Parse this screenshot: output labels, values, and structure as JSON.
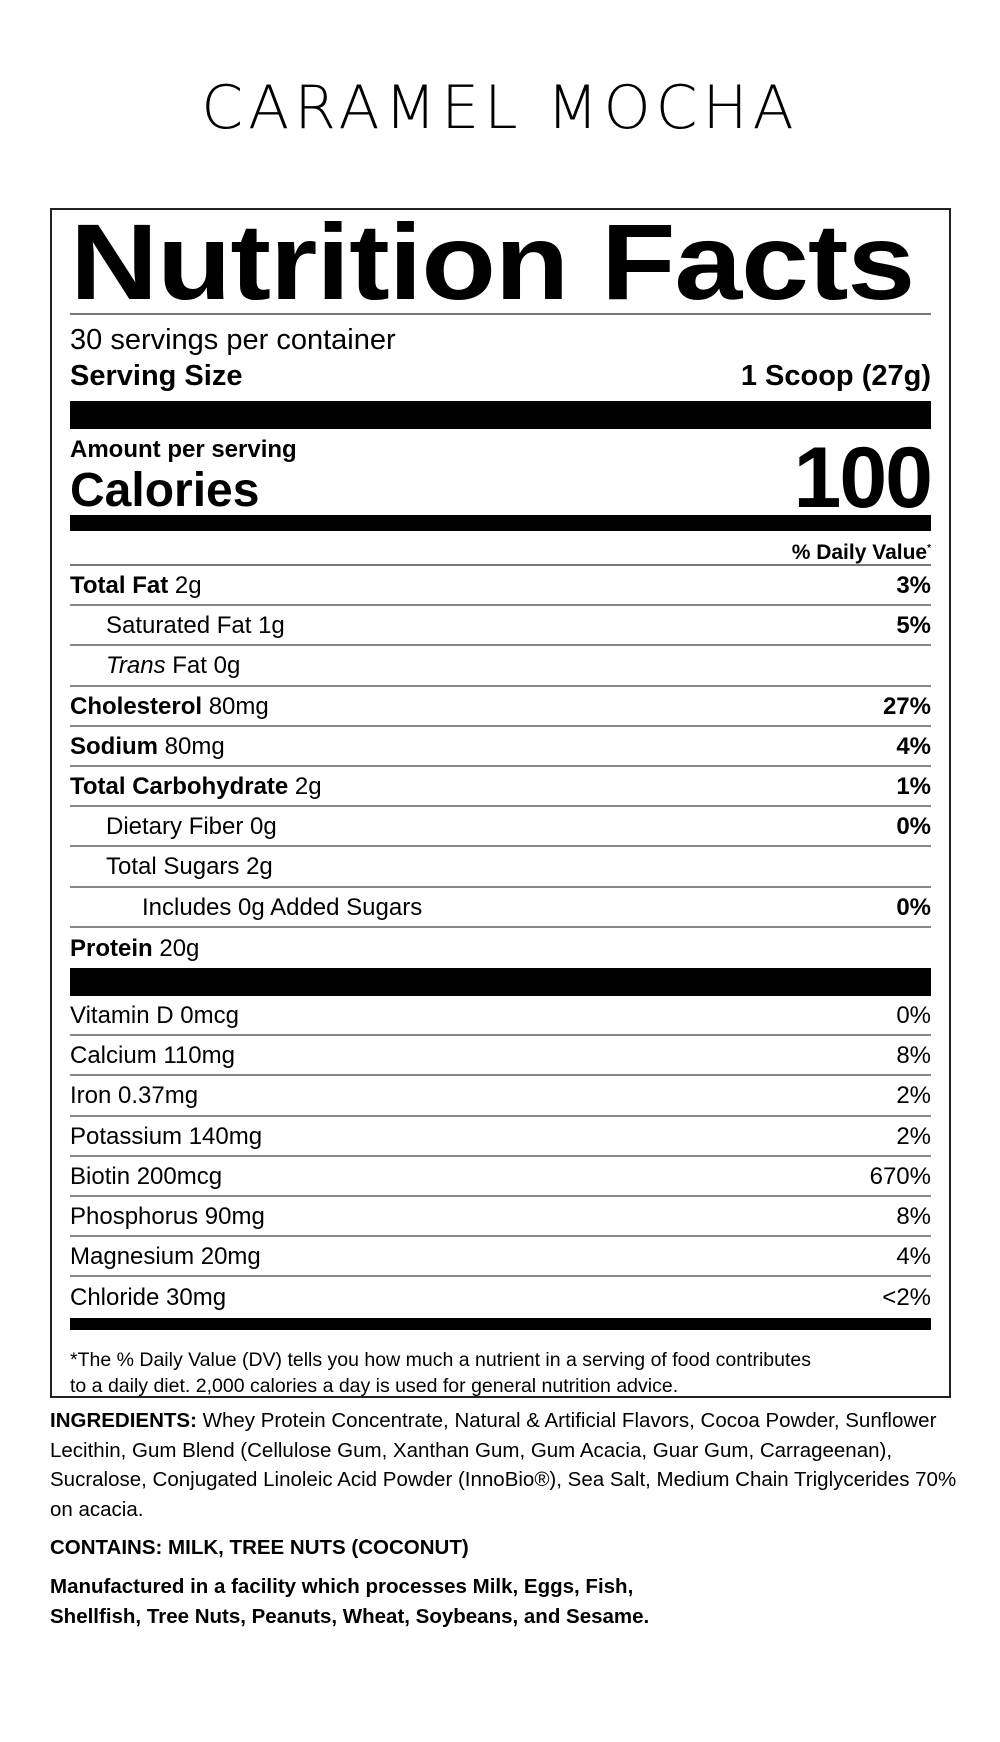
{
  "product_title": "CARAMEL MOCHA",
  "label": {
    "title": "Nutrition Facts",
    "servings_per_container": "30 servings per container",
    "serving_size_label": "Serving Size",
    "serving_size_value": "1 Scoop (27g)",
    "amount_per_serving": "Amount per serving",
    "calories_label": "Calories",
    "calories_value": "100",
    "daily_value_header": "% Daily Value",
    "daily_value_asterisk": "*",
    "nutrients": [
      {
        "bold": "Total Fat",
        "text": " 2g",
        "dv": "3%",
        "indent": 0
      },
      {
        "text": "Saturated Fat 1g",
        "dv": "5%",
        "indent": 1
      },
      {
        "italic": "Trans",
        "text": " Fat 0g",
        "dv": "",
        "indent": 1
      },
      {
        "bold": "Cholesterol",
        "text": " 80mg",
        "dv": "27%",
        "indent": 0
      },
      {
        "bold": "Sodium",
        "text": " 80mg",
        "dv": "4%",
        "indent": 0
      },
      {
        "bold": "Total Carbohydrate",
        "text": " 2g",
        "dv": "1%",
        "indent": 0
      },
      {
        "text": "Dietary Fiber 0g",
        "dv": "0%",
        "indent": 1
      },
      {
        "text": "Total Sugars 2g",
        "dv": "",
        "indent": 1
      },
      {
        "text": "Includes 0g Added Sugars",
        "dv": "0%",
        "indent": 2
      },
      {
        "bold": "Protein",
        "text": " 20g",
        "dv": "",
        "indent": 0
      }
    ],
    "vitamins": [
      {
        "text": "Vitamin D 0mcg",
        "dv": "0%"
      },
      {
        "text": "Calcium 110mg",
        "dv": "8%"
      },
      {
        "text": "Iron 0.37mg",
        "dv": "2%"
      },
      {
        "text": "Potassium 140mg",
        "dv": "2%"
      },
      {
        "text": "Biotin 200mcg",
        "dv": "670%"
      },
      {
        "text": "Phosphorus 90mg",
        "dv": "8%"
      },
      {
        "text": "Magnesium 20mg",
        "dv": "4%"
      },
      {
        "text": "Chloride 30mg",
        "dv": "<2%"
      }
    ],
    "footnote_line1": "*The % Daily Value (DV) tells you how much a nutrient in a serving of food contributes",
    "footnote_line2": "to a daily diet. 2,000 calories a day is used for general nutrition advice."
  },
  "ingredients": {
    "label": "INGREDIENTS:",
    "text": " Whey Protein Concentrate, Natural & Artificial Flavors, Cocoa Powder, Sunflower Lecithin, Gum Blend (Cellulose Gum, Xanthan Gum, Gum Acacia, Guar Gum, Carrageenan), Sucralose, Conjugated Linoleic Acid Powder (InnoBio®), Sea Salt, Medium Chain Triglycerides 70% on acacia."
  },
  "contains": "CONTAINS: MILK, TREE NUTS (COCONUT)",
  "facility_line1": "Manufactured in a facility which processes Milk, Eggs, Fish,",
  "facility_line2": "Shellfish, Tree Nuts, Peanuts, Wheat, Soybeans, and Sesame."
}
